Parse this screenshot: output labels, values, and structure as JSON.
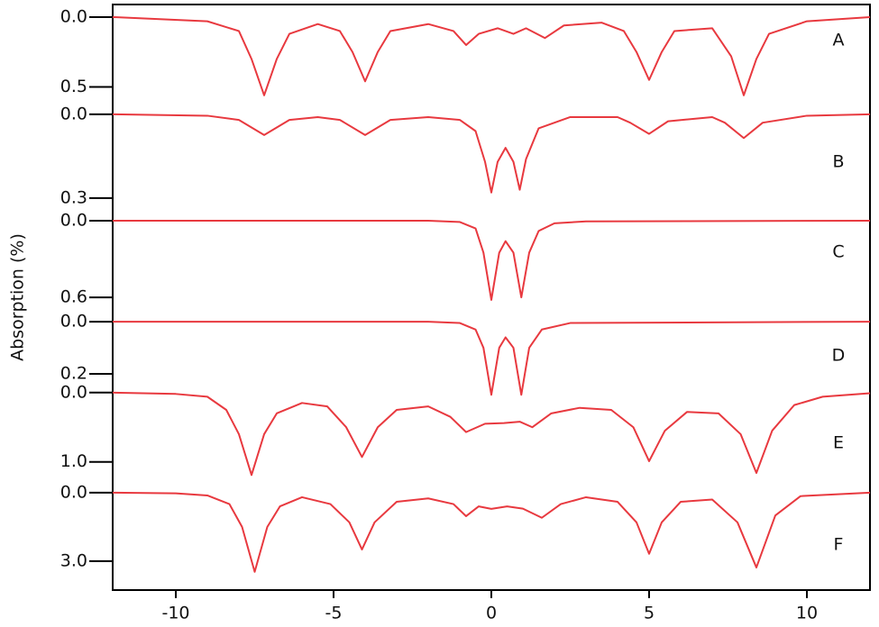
{
  "ylabel": "Absorption (%)",
  "chart_data": [
    {
      "type": "line",
      "label": "A",
      "color": "#e8393f",
      "y_inverted": true,
      "xlim": [
        -12,
        12
      ],
      "ylim": [
        -0.09,
        0.6
      ],
      "yticks": [
        {
          "value": 0,
          "label": "0.0"
        },
        0.5
      ],
      "x": [
        -12,
        -9,
        -8,
        -7.6,
        -7.2,
        -6.8,
        -6.4,
        -5.5,
        -4.8,
        -4.4,
        -4.0,
        -3.6,
        -3.2,
        -2,
        -1.2,
        -0.8,
        -0.4,
        0.2,
        0.7,
        1.1,
        1.7,
        2.3,
        3.5,
        4.2,
        4.6,
        5.0,
        5.4,
        5.8,
        7,
        7.6,
        8.0,
        8.4,
        8.8,
        10,
        12
      ],
      "values": [
        0,
        0.03,
        0.1,
        0.3,
        0.56,
        0.3,
        0.12,
        0.05,
        0.1,
        0.25,
        0.46,
        0.25,
        0.1,
        0.05,
        0.1,
        0.2,
        0.12,
        0.08,
        0.12,
        0.08,
        0.15,
        0.06,
        0.04,
        0.1,
        0.25,
        0.45,
        0.25,
        0.1,
        0.08,
        0.28,
        0.56,
        0.3,
        0.12,
        0.03,
        0
      ]
    },
    {
      "type": "line",
      "label": "B",
      "color": "#e8393f",
      "y_inverted": true,
      "xlim": [
        -12,
        12
      ],
      "ylim": [
        -0.048,
        0.326
      ],
      "yticks": [
        {
          "value": 0,
          "label": "0.0"
        },
        0.3
      ],
      "x": [
        -12,
        -9,
        -8,
        -7.2,
        -6.4,
        -5.5,
        -4.8,
        -4.0,
        -3.2,
        -2,
        -1,
        -0.5,
        -0.2,
        0,
        0.2,
        0.45,
        0.7,
        0.9,
        1.1,
        1.5,
        2.5,
        4,
        4.4,
        5.0,
        5.6,
        7,
        7.4,
        8.0,
        8.6,
        10,
        12
      ],
      "values": [
        0,
        0.005,
        0.02,
        0.074,
        0.02,
        0.01,
        0.02,
        0.074,
        0.02,
        0.01,
        0.02,
        0.06,
        0.17,
        0.28,
        0.17,
        0.12,
        0.17,
        0.27,
        0.16,
        0.05,
        0.01,
        0.01,
        0.03,
        0.07,
        0.025,
        0.01,
        0.03,
        0.085,
        0.03,
        0.005,
        0
      ]
    },
    {
      "type": "line",
      "label": "C",
      "color": "#e8393f",
      "y_inverted": true,
      "xlim": [
        -12,
        12
      ],
      "ylim": [
        -0.12,
        0.67
      ],
      "yticks": [
        {
          "value": 0,
          "label": "0.0"
        },
        0.6
      ],
      "x": [
        -12,
        -2,
        -1,
        -0.5,
        -0.25,
        0,
        0.25,
        0.45,
        0.7,
        0.95,
        1.2,
        1.5,
        2,
        3,
        12
      ],
      "values": [
        0,
        0,
        0.01,
        0.06,
        0.25,
        0.62,
        0.25,
        0.16,
        0.25,
        0.6,
        0.25,
        0.08,
        0.02,
        0.005,
        0
      ]
    },
    {
      "type": "line",
      "label": "D",
      "color": "#e8393f",
      "y_inverted": true,
      "xlim": [
        -12,
        12
      ],
      "ylim": [
        -0.059,
        0.3
      ],
      "yticks": [
        {
          "value": 0,
          "label": "0.0"
        },
        0.2
      ],
      "x": [
        -12,
        -2,
        -1,
        -0.5,
        -0.25,
        0,
        0.25,
        0.45,
        0.7,
        0.95,
        1.2,
        1.6,
        2.5,
        12
      ],
      "values": [
        0,
        0,
        0.005,
        0.03,
        0.1,
        0.28,
        0.1,
        0.06,
        0.1,
        0.28,
        0.1,
        0.03,
        0.005,
        0
      ]
    },
    {
      "type": "line",
      "label": "E",
      "color": "#e8393f",
      "y_inverted": true,
      "xlim": [
        -12,
        12
      ],
      "ylim": [
        -0.14,
        1.29
      ],
      "yticks": [
        {
          "value": 0,
          "label": "0.0"
        },
        {
          "value": 1,
          "label": "1.0"
        }
      ],
      "x": [
        -12,
        -10,
        -9,
        -8.4,
        -8,
        -7.6,
        -7.2,
        -6.8,
        -6,
        -5.2,
        -4.6,
        -4.1,
        -3.6,
        -3,
        -2,
        -1.3,
        -0.8,
        -0.2,
        0.4,
        0.9,
        1.3,
        1.9,
        2.8,
        3.8,
        4.5,
        5.0,
        5.5,
        6.2,
        7.2,
        7.9,
        8.4,
        8.9,
        9.6,
        10.5,
        12
      ],
      "values": [
        0,
        0.02,
        0.06,
        0.25,
        0.6,
        1.19,
        0.6,
        0.3,
        0.15,
        0.2,
        0.5,
        0.93,
        0.5,
        0.25,
        0.2,
        0.35,
        0.57,
        0.45,
        0.44,
        0.42,
        0.5,
        0.3,
        0.22,
        0.25,
        0.5,
        0.99,
        0.55,
        0.28,
        0.3,
        0.6,
        1.16,
        0.55,
        0.18,
        0.06,
        0.01
      ]
    },
    {
      "type": "line",
      "label": "F",
      "color": "#e8393f",
      "y_inverted": true,
      "xlim": [
        -12,
        12
      ],
      "ylim": [
        -0.47,
        4.27
      ],
      "yticks": [
        {
          "value": 0,
          "label": "0.0"
        },
        {
          "value": 3,
          "label": "3.0"
        }
      ],
      "xticks": [
        -10,
        -5,
        0,
        5,
        10
      ],
      "x": [
        -12,
        -10,
        -9,
        -8.3,
        -7.9,
        -7.5,
        -7.1,
        -6.7,
        -6,
        -5.1,
        -4.5,
        -4.1,
        -3.7,
        -3,
        -2,
        -1.2,
        -0.8,
        -0.4,
        0,
        0.5,
        1,
        1.6,
        2.2,
        3,
        4,
        4.6,
        5.0,
        5.4,
        6,
        7,
        7.8,
        8.4,
        9,
        9.8,
        12
      ],
      "values": [
        0,
        0.03,
        0.12,
        0.5,
        1.5,
        3.47,
        1.5,
        0.6,
        0.2,
        0.5,
        1.3,
        2.49,
        1.3,
        0.4,
        0.25,
        0.5,
        1.03,
        0.6,
        0.71,
        0.6,
        0.7,
        1.1,
        0.5,
        0.2,
        0.4,
        1.3,
        2.68,
        1.3,
        0.4,
        0.3,
        1.3,
        3.28,
        1.0,
        0.15,
        0
      ]
    }
  ]
}
